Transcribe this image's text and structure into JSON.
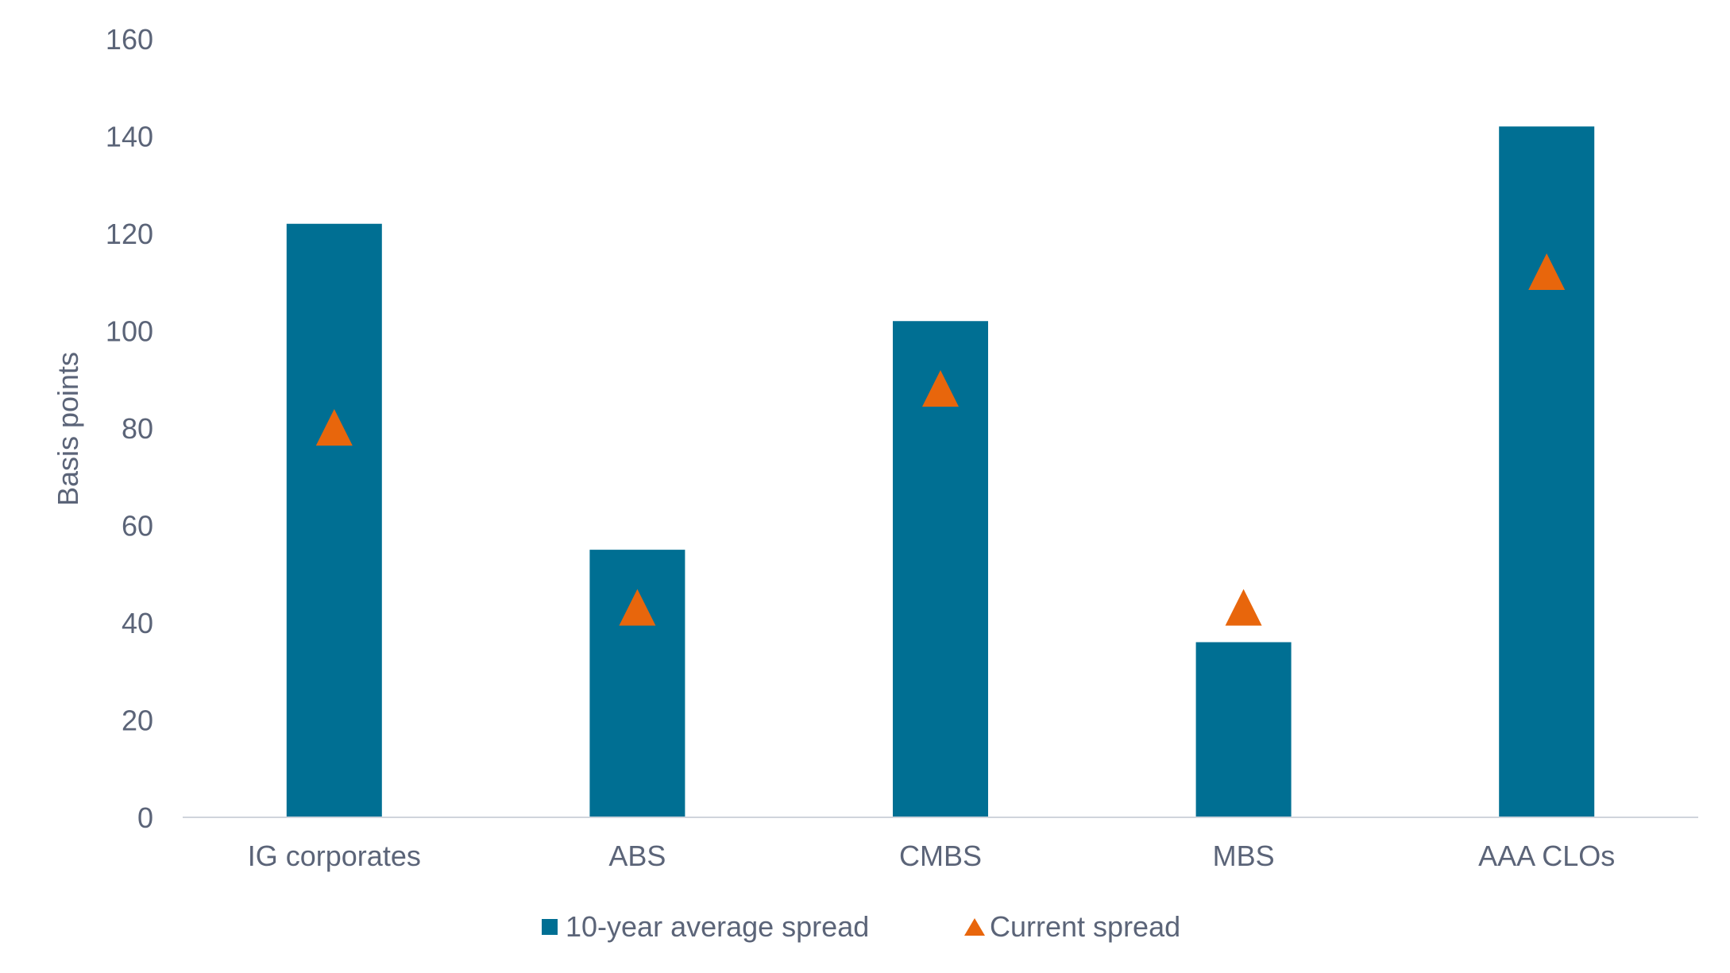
{
  "chart_data": {
    "type": "bar",
    "title": "",
    "xlabel": "",
    "ylabel": "Basis points",
    "ylim": [
      0,
      160
    ],
    "yticks": [
      0,
      20,
      40,
      60,
      80,
      100,
      120,
      140,
      160
    ],
    "grid": false,
    "legend_position": "bottom",
    "categories": [
      "IG corporates",
      "ABS",
      "CMBS",
      "MBS",
      "AAA CLOs"
    ],
    "series": [
      {
        "name": "10-year average spread",
        "type": "bar",
        "color": "#006F93",
        "values": [
          122,
          55,
          102,
          36,
          142
        ]
      },
      {
        "name": "Current spread",
        "type": "marker-triangle",
        "color": "#E8660C",
        "values": [
          80,
          43,
          88,
          43,
          112
        ]
      }
    ]
  }
}
